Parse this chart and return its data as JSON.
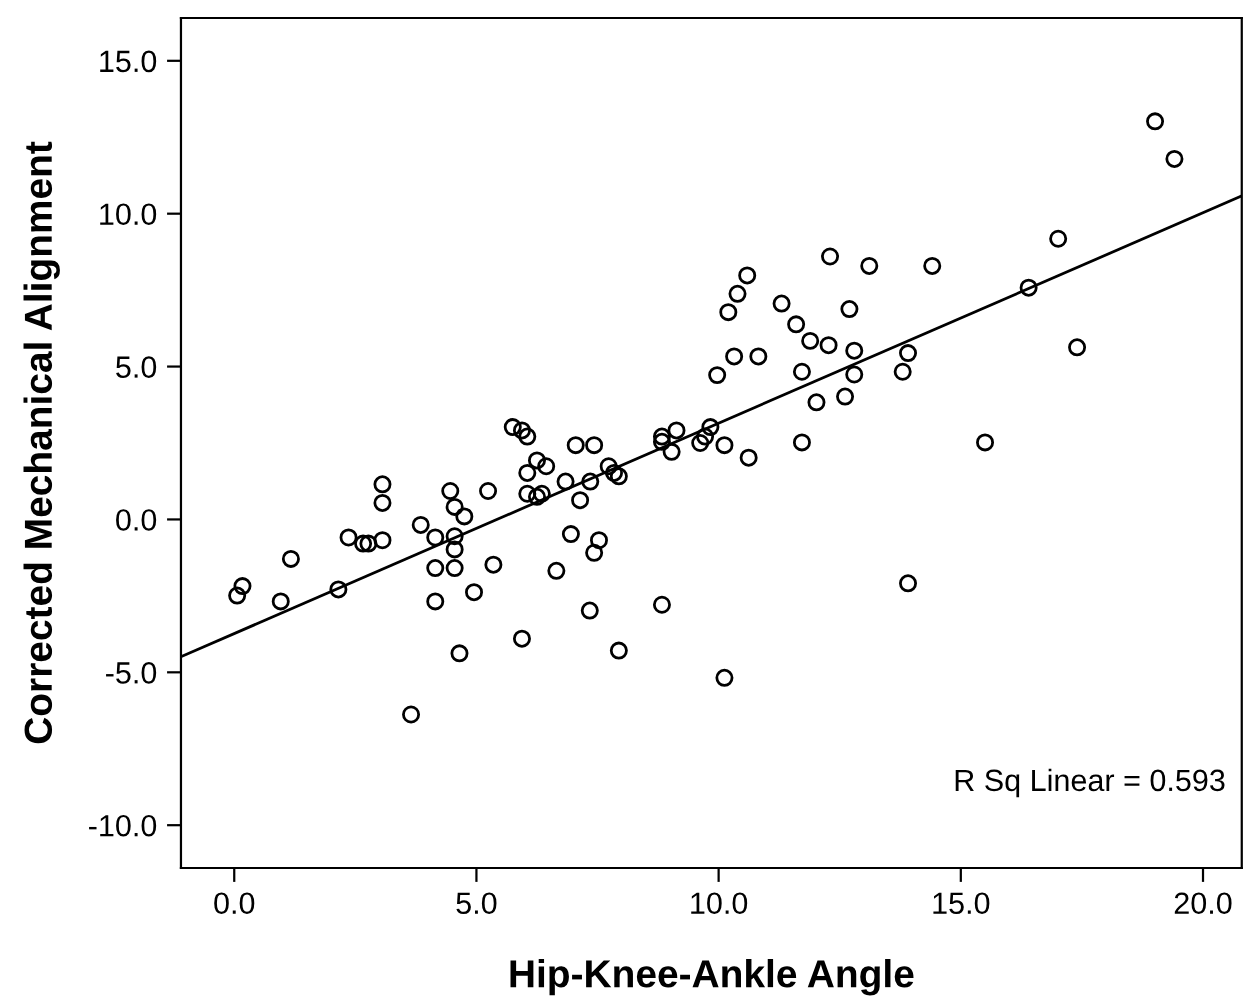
{
  "chart_data": {
    "type": "scatter",
    "xlabel": "Hip-Knee-Ankle Angle",
    "ylabel": "Corrected Mechanical Alignment",
    "xlim": [
      -1.1,
      20.8
    ],
    "ylim": [
      -11.4,
      16.4
    ],
    "xticks": [
      {
        "value": 0,
        "label": "0.0"
      },
      {
        "value": 5,
        "label": "5.0"
      },
      {
        "value": 10,
        "label": "10.0"
      },
      {
        "value": 15,
        "label": "15.0"
      },
      {
        "value": 20,
        "label": "20.0"
      }
    ],
    "yticks": [
      {
        "value": -10,
        "label": "-10.0"
      },
      {
        "value": -5,
        "label": "-5.0"
      },
      {
        "value": 0,
        "label": "0.0"
      },
      {
        "value": 5,
        "label": "5.0"
      },
      {
        "value": 10,
        "label": "10.0"
      },
      {
        "value": 15,
        "label": "15.0"
      }
    ],
    "grid": false,
    "legend": false,
    "marker": "circle",
    "annotations": [
      "R Sq Linear = 0.593"
    ],
    "series": [
      {
        "color": "#000000",
        "x": [
          0.06,
          0.17,
          0.96,
          1.17,
          2.15,
          2.36,
          2.66,
          2.77,
          3.06,
          3.06,
          3.06,
          3.65,
          3.85,
          4.15,
          4.15,
          4.15,
          4.46,
          4.55,
          4.55,
          4.55,
          4.55,
          4.65,
          4.75,
          4.95,
          5.24,
          5.35,
          5.75,
          5.94,
          6.05,
          5.94,
          6.05,
          6.05,
          6.25,
          6.25,
          6.35,
          6.44,
          6.65,
          6.84,
          6.95,
          7.05,
          7.14,
          7.34,
          7.35,
          7.43,
          7.43,
          7.53,
          7.73,
          7.84,
          7.94,
          7.94,
          8.83,
          8.83,
          8.83,
          9.03,
          9.13,
          9.62,
          9.72,
          9.83,
          9.97,
          19.01,
          19.41,
          17.01,
          16.4,
          12.3,
          13.11,
          14.41,
          10.59,
          10.39,
          10.2,
          11.3,
          12.7,
          11.6,
          11.89,
          12.27,
          10.32,
          10.82,
          12.8,
          13.91,
          11.72,
          12.8,
          13.8,
          12.02,
          12.61,
          17.4,
          10.12,
          10.62,
          11.72,
          15.5,
          13.91,
          10.12
        ],
        "values": [
          -2.49,
          -2.18,
          -2.68,
          -1.29,
          -2.29,
          -0.59,
          -0.79,
          -0.79,
          -0.68,
          0.54,
          1.15,
          -6.38,
          -0.18,
          -0.59,
          -1.59,
          -2.68,
          0.93,
          0.41,
          -0.55,
          -0.98,
          -1.59,
          -4.38,
          0.1,
          -2.38,
          0.93,
          -1.48,
          3.02,
          2.91,
          2.71,
          -3.9,
          1.52,
          0.84,
          1.93,
          0.74,
          0.84,
          1.74,
          -1.68,
          1.24,
          -0.48,
          2.43,
          0.63,
          -2.98,
          1.24,
          2.43,
          -1.09,
          -0.68,
          1.74,
          1.52,
          1.41,
          -4.29,
          -2.79,
          2.71,
          2.54,
          2.21,
          2.91,
          2.5,
          2.71,
          3.02,
          4.72,
          13.02,
          11.79,
          9.18,
          7.58,
          8.6,
          8.29,
          8.29,
          7.98,
          7.38,
          6.78,
          7.06,
          6.88,
          6.38,
          5.84,
          5.7,
          5.33,
          5.33,
          5.52,
          5.44,
          4.83,
          4.74,
          4.83,
          3.83,
          4.02,
          5.63,
          2.43,
          2.02,
          2.52,
          2.52,
          -2.09,
          -5.18
        ]
      },
      {
        "type": "line",
        "color": "#000000",
        "marker": "none",
        "line_style": "solid",
        "x": [
          -1.1,
          20.8
        ],
        "values": [
          -4.49,
          10.58
        ]
      }
    ]
  }
}
